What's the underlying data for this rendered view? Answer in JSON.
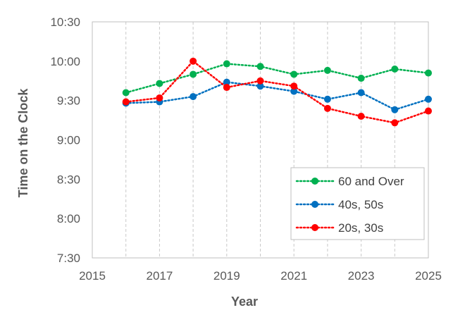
{
  "chart_data": {
    "type": "line",
    "xlabel": "Year",
    "ylabel": "Time on the Clock",
    "xlim": [
      2015,
      2025
    ],
    "x_ticks": [
      "2015",
      "2017",
      "2019",
      "2021",
      "2023",
      "2025"
    ],
    "ylim_minutes": [
      450,
      630
    ],
    "y_ticks": [
      "7:30",
      "8:00",
      "8:30",
      "9:00",
      "9:30",
      "10:00",
      "10:30"
    ],
    "x": [
      2016,
      2017,
      2018,
      2019,
      2020,
      2021,
      2022,
      2023,
      2024,
      2025
    ],
    "y_unit": "minutes after midnight",
    "grid": "vertical",
    "legend_position": "bottom-right",
    "series": [
      {
        "name": "60 and Over",
        "color": "#00B050",
        "line_style": "dotted",
        "values": [
          576,
          583,
          590,
          598,
          596,
          590,
          593,
          587,
          594,
          591
        ]
      },
      {
        "name": "40s, 50s",
        "color": "#0070C0",
        "line_style": "dotted",
        "values": [
          568,
          569,
          573,
          584,
          581,
          577,
          571,
          576,
          563,
          571
        ]
      },
      {
        "name": "20s, 30s",
        "color": "#FF0000",
        "line_style": "dotted",
        "values": [
          569,
          572,
          600,
          580,
          585,
          581,
          564,
          558,
          553,
          562
        ]
      }
    ]
  }
}
